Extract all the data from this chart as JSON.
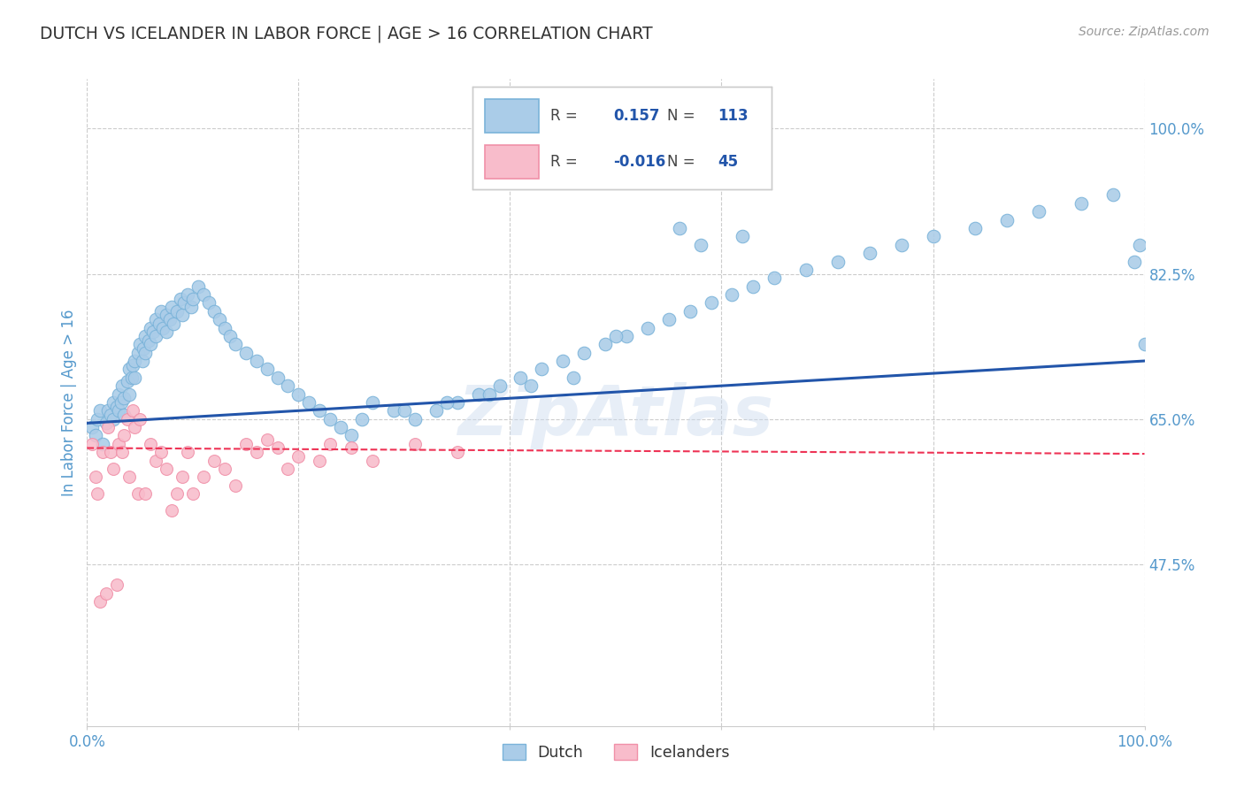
{
  "title": "DUTCH VS ICELANDER IN LABOR FORCE | AGE > 16 CORRELATION CHART",
  "source": "Source: ZipAtlas.com",
  "ylabel": "In Labor Force | Age > 16",
  "watermark": "ZipAtlas",
  "xlim": [
    0.0,
    1.0
  ],
  "ylim": [
    0.28,
    1.06
  ],
  "yticks": [
    0.475,
    0.65,
    0.825,
    1.0
  ],
  "ytick_labels": [
    "47.5%",
    "65.0%",
    "82.5%",
    "100.0%"
  ],
  "xticks": [
    0.0,
    0.2,
    0.4,
    0.6,
    0.8,
    1.0
  ],
  "xtick_labels": [
    "0.0%",
    "",
    "",
    "",
    "",
    "100.0%"
  ],
  "dutch_color": "#7ab3d9",
  "dutch_fill": "#aacce8",
  "icelander_color": "#f090a8",
  "icelander_fill": "#f8bccb",
  "trend_dutch_color": "#2255aa",
  "trend_icelander_color": "#ee3355",
  "trend_icelander_style": "--",
  "R_dutch": 0.157,
  "N_dutch": 113,
  "R_icelander": -0.016,
  "N_icelander": 45,
  "legend_color": "#2255aa",
  "grid_color": "#cccccc",
  "background_color": "#ffffff",
  "title_color": "#333333",
  "source_color": "#999999",
  "tick_color": "#5599cc",
  "dutch_x": [
    0.005,
    0.008,
    0.01,
    0.012,
    0.015,
    0.018,
    0.02,
    0.022,
    0.025,
    0.025,
    0.028,
    0.03,
    0.03,
    0.032,
    0.033,
    0.035,
    0.035,
    0.038,
    0.04,
    0.04,
    0.042,
    0.043,
    0.045,
    0.045,
    0.048,
    0.05,
    0.052,
    0.053,
    0.055,
    0.055,
    0.058,
    0.06,
    0.06,
    0.062,
    0.065,
    0.065,
    0.068,
    0.07,
    0.072,
    0.075,
    0.075,
    0.078,
    0.08,
    0.082,
    0.085,
    0.088,
    0.09,
    0.092,
    0.095,
    0.098,
    0.1,
    0.105,
    0.11,
    0.115,
    0.12,
    0.125,
    0.13,
    0.135,
    0.14,
    0.15,
    0.16,
    0.17,
    0.18,
    0.19,
    0.2,
    0.21,
    0.22,
    0.23,
    0.24,
    0.25,
    0.27,
    0.29,
    0.31,
    0.33,
    0.35,
    0.37,
    0.39,
    0.41,
    0.43,
    0.45,
    0.47,
    0.49,
    0.51,
    0.53,
    0.55,
    0.57,
    0.59,
    0.61,
    0.63,
    0.65,
    0.68,
    0.71,
    0.74,
    0.77,
    0.8,
    0.84,
    0.87,
    0.9,
    0.94,
    0.97,
    0.99,
    0.995,
    1.0,
    0.62,
    0.58,
    0.56,
    0.5,
    0.46,
    0.42,
    0.38,
    0.34,
    0.3,
    0.26
  ],
  "dutch_y": [
    0.64,
    0.63,
    0.65,
    0.66,
    0.62,
    0.645,
    0.66,
    0.655,
    0.67,
    0.65,
    0.665,
    0.68,
    0.66,
    0.67,
    0.69,
    0.675,
    0.655,
    0.695,
    0.71,
    0.68,
    0.7,
    0.715,
    0.72,
    0.7,
    0.73,
    0.74,
    0.72,
    0.735,
    0.75,
    0.73,
    0.745,
    0.76,
    0.74,
    0.755,
    0.77,
    0.75,
    0.765,
    0.78,
    0.76,
    0.775,
    0.755,
    0.77,
    0.785,
    0.765,
    0.78,
    0.795,
    0.775,
    0.79,
    0.8,
    0.785,
    0.795,
    0.81,
    0.8,
    0.79,
    0.78,
    0.77,
    0.76,
    0.75,
    0.74,
    0.73,
    0.72,
    0.71,
    0.7,
    0.69,
    0.68,
    0.67,
    0.66,
    0.65,
    0.64,
    0.63,
    0.67,
    0.66,
    0.65,
    0.66,
    0.67,
    0.68,
    0.69,
    0.7,
    0.71,
    0.72,
    0.73,
    0.74,
    0.75,
    0.76,
    0.77,
    0.78,
    0.79,
    0.8,
    0.81,
    0.82,
    0.83,
    0.84,
    0.85,
    0.86,
    0.87,
    0.88,
    0.89,
    0.9,
    0.91,
    0.92,
    0.84,
    0.86,
    0.74,
    0.87,
    0.86,
    0.88,
    0.75,
    0.7,
    0.69,
    0.68,
    0.67,
    0.66,
    0.65
  ],
  "icelander_x": [
    0.005,
    0.008,
    0.01,
    0.012,
    0.015,
    0.018,
    0.02,
    0.022,
    0.025,
    0.028,
    0.03,
    0.033,
    0.035,
    0.038,
    0.04,
    0.043,
    0.045,
    0.048,
    0.05,
    0.055,
    0.06,
    0.065,
    0.07,
    0.075,
    0.08,
    0.085,
    0.09,
    0.095,
    0.1,
    0.11,
    0.12,
    0.13,
    0.14,
    0.15,
    0.16,
    0.17,
    0.18,
    0.19,
    0.2,
    0.22,
    0.23,
    0.25,
    0.27,
    0.31,
    0.35
  ],
  "icelander_y": [
    0.62,
    0.58,
    0.56,
    0.43,
    0.61,
    0.44,
    0.64,
    0.61,
    0.59,
    0.45,
    0.62,
    0.61,
    0.63,
    0.65,
    0.58,
    0.66,
    0.64,
    0.56,
    0.65,
    0.56,
    0.62,
    0.6,
    0.61,
    0.59,
    0.54,
    0.56,
    0.58,
    0.61,
    0.56,
    0.58,
    0.6,
    0.59,
    0.57,
    0.62,
    0.61,
    0.625,
    0.615,
    0.59,
    0.605,
    0.6,
    0.62,
    0.615,
    0.6,
    0.62,
    0.61
  ],
  "dutch_trend_x0": 0.0,
  "dutch_trend_y0": 0.645,
  "dutch_trend_x1": 1.0,
  "dutch_trend_y1": 0.72,
  "icelander_trend_x0": 0.0,
  "icelander_trend_y0": 0.615,
  "icelander_trend_x1": 1.0,
  "icelander_trend_y1": 0.608
}
